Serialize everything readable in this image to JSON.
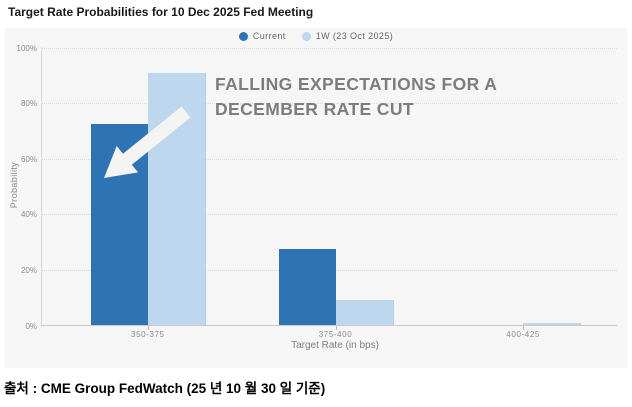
{
  "title": "Target Rate Probabilities for 10 Dec 2025 Fed Meeting",
  "source": "출처 : CME Group FedWatch (25 년 10 월 30 일 기준)",
  "annotation": {
    "line1": "FALLING EXPECTATIONS FOR A",
    "line2": "DECEMBER RATE CUT"
  },
  "axes": {
    "ylabel": "Probability",
    "xlabel": "Target Rate (in bps)"
  },
  "colors": {
    "current": "#2e74b5",
    "one_week": "#bdd7ee",
    "panel_bg": "#f6f6f7",
    "annotation_text": "#7d7d7d",
    "arrow": "#f4f4f2"
  },
  "chart_data": {
    "type": "bar",
    "title": "Target Rate Probabilities for 10 Dec 2025 Fed Meeting",
    "categories": [
      "350-375",
      "375-400",
      "400-425"
    ],
    "series": [
      {
        "name": "Current",
        "color": "#2e74b5",
        "values": [
          72.5,
          27.5,
          0
        ]
      },
      {
        "name": "1W (23 Oct 2025)",
        "color": "#bdd7ee",
        "values": [
          91,
          9,
          1
        ]
      }
    ],
    "xlabel": "Target Rate (in bps)",
    "ylabel": "Probability",
    "ylim": [
      0,
      100
    ],
    "yticks": [
      "0%",
      "20%",
      "40%",
      "60%",
      "80%",
      "100%"
    ],
    "ytick_values": [
      0,
      20,
      40,
      60,
      80,
      100
    ],
    "grid": "horizontal-dotted",
    "legend_position": "top-center",
    "annotation": "FALLING EXPECTATIONS FOR A DECEMBER RATE CUT"
  }
}
